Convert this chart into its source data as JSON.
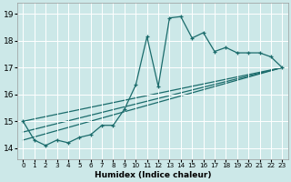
{
  "xlabel": "Humidex (Indice chaleur)",
  "background_color": "#cce8e8",
  "grid_color": "#ffffff",
  "line_color": "#1a6b6b",
  "xlim": [
    -0.5,
    23.5
  ],
  "ylim": [
    13.6,
    19.4
  ],
  "xticks": [
    0,
    1,
    2,
    3,
    4,
    5,
    6,
    7,
    8,
    9,
    10,
    11,
    12,
    13,
    14,
    15,
    16,
    17,
    18,
    19,
    20,
    21,
    22,
    23
  ],
  "yticks": [
    14,
    15,
    16,
    17,
    18,
    19
  ],
  "series1_x": [
    0,
    1,
    2,
    3,
    4,
    5,
    6,
    7,
    8,
    9,
    10,
    11,
    12,
    13,
    14,
    15,
    16,
    17,
    18,
    19,
    20,
    21,
    22,
    23
  ],
  "series1_y": [
    15.0,
    14.3,
    14.1,
    14.3,
    14.2,
    14.4,
    14.5,
    14.85,
    14.85,
    15.45,
    16.35,
    18.15,
    16.3,
    18.85,
    18.9,
    18.1,
    18.3,
    17.6,
    17.75,
    17.55,
    17.55,
    17.55,
    17.4,
    17.0
  ],
  "line2_x": [
    0,
    23
  ],
  "line2_y": [
    15.0,
    17.0
  ],
  "line3_x": [
    0,
    23
  ],
  "line3_y": [
    14.6,
    17.0
  ],
  "line4_x": [
    0,
    23
  ],
  "line4_y": [
    14.3,
    17.0
  ]
}
